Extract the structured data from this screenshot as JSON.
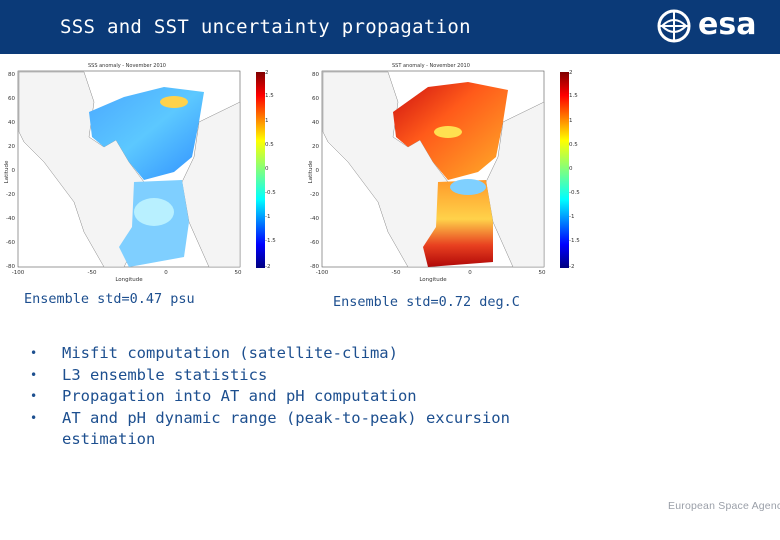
{
  "header": {
    "title": "SSS and SST uncertainty propagation",
    "logo_text": "esa",
    "background": "#0b3a78"
  },
  "maps": [
    {
      "title": "SSS anomaly - November 2010",
      "xlabel": "Longitude",
      "ylabel": "Latitude",
      "lat_ticks": [
        "80",
        "60",
        "40",
        "20",
        "0",
        "-20",
        "-40",
        "-60",
        "-80"
      ],
      "lon_ticks": [
        "-100",
        "-50",
        "0",
        "50"
      ],
      "colorbar_ticks": [
        "2",
        "1.5",
        "1",
        "0.5",
        "0",
        "-0.5",
        "-1",
        "-1.5",
        "-2"
      ],
      "caption": "Ensemble std=0.47 psu"
    },
    {
      "title": "SST anomaly - November 2010",
      "xlabel": "Longitude",
      "ylabel": "Latitude",
      "lat_ticks": [
        "80",
        "60",
        "40",
        "20",
        "0",
        "-20",
        "-40",
        "-60",
        "-80"
      ],
      "lon_ticks": [
        "-100",
        "-50",
        "0",
        "50"
      ],
      "colorbar_ticks": [
        "2",
        "1.5",
        "1",
        "0.5",
        "0",
        "-0.5",
        "-1",
        "-1.5",
        "-2"
      ],
      "caption": "Ensemble std=0.72 deg.C"
    }
  ],
  "bullets": [
    "Misfit computation (satellite-clima)",
    "L3 ensemble statistics",
    "Propagation into AT and pH computation",
    "AT and pH dynamic range (peak-to-peak) excursion estimation"
  ],
  "footer": "European Space Agency"
}
